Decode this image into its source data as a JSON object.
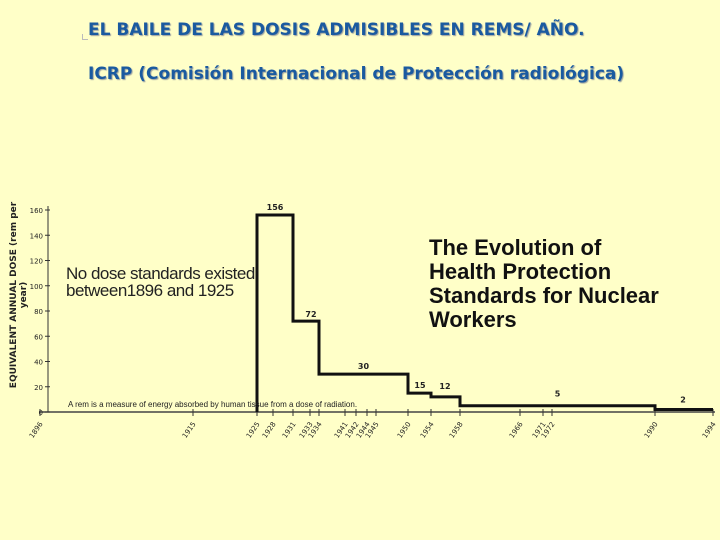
{
  "slide": {
    "title": "EL BAILE DE LAS DOSIS ADMISIBLES EN REMS/ AÑO.",
    "subtitle": "ICRP (Comisión Internacional de Protección radiológica)",
    "background": "#ffffc8",
    "title_color": "#1a5aa0"
  },
  "chart_data": {
    "type": "line",
    "step": true,
    "title": "The Evolution of Health Protection Standards for Nuclear Workers",
    "ylabel": "EQUIVALENT ANNUAL DOSE (rem per year)",
    "xlabel": "",
    "ylim": [
      0,
      160
    ],
    "yticks": [
      0,
      20,
      40,
      60,
      80,
      100,
      120,
      140,
      160
    ],
    "xticks": [
      "1896",
      "1915",
      "1925",
      "1928",
      "1931",
      "1933",
      "1934",
      "1941",
      "1942",
      "1944",
      "1945",
      "1950",
      "1954",
      "1958",
      "1966",
      "1971",
      "1972",
      "1990",
      "1994"
    ],
    "steps": [
      {
        "from": 1925,
        "to": 1931,
        "value": 156,
        "label": "156"
      },
      {
        "from": 1931,
        "to": 1934,
        "value": 72,
        "label": "72"
      },
      {
        "from": 1934,
        "to": 1950,
        "value": 30,
        "label": "30"
      },
      {
        "from": 1950,
        "to": 1954,
        "value": 15,
        "label": "15"
      },
      {
        "from": 1954,
        "to": 1958,
        "value": 12,
        "label": "12"
      },
      {
        "from": 1958,
        "to": 1990,
        "value": 5,
        "label": "5"
      },
      {
        "from": 1990,
        "to": 1994,
        "value": 2,
        "label": "2"
      }
    ],
    "annotations": {
      "no_standards": "No dose standards existed between1896 and 1925",
      "rem_note": "A rem is a measure of energy absorbed by human tissue from a dose of radiation."
    },
    "grid": false
  }
}
